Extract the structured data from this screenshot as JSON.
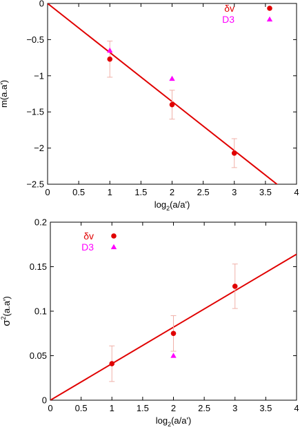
{
  "colors": {
    "fit_line": "#e00000",
    "dv_marker": "#e00000",
    "d3_marker": "#ff00ff",
    "error_bar": "#f0b0a8",
    "axis": "#000000"
  },
  "chart_data": [
    {
      "type": "scatter",
      "title": "",
      "xlabel": {
        "main": "log",
        "sub": "2",
        "rest": "(a/a')"
      },
      "ylabel": {
        "main": "m(a.a')"
      },
      "xlim": [
        0,
        4
      ],
      "ylim": [
        -2.5,
        0
      ],
      "xticks": [
        0,
        0.5,
        1,
        1.5,
        2,
        2.5,
        3,
        3.5,
        4
      ],
      "xtick_labels": [
        "0",
        "0.5",
        "1",
        "1.5",
        "2",
        "2.5",
        "3",
        "3.5",
        "4"
      ],
      "yticks": [
        0,
        -0.5,
        -1,
        -1.5,
        -2,
        -2.5
      ],
      "ytick_labels": [
        "0",
        "−0.5",
        "−1",
        "−1.5",
        "−2",
        "−2.5"
      ],
      "grid": false,
      "legend_position": "top-right",
      "series": [
        {
          "name": "δv",
          "marker": "circle",
          "points": [
            {
              "x": 1,
              "y": -0.77,
              "err": 0.25
            },
            {
              "x": 2,
              "y": -1.4,
              "err": 0.2
            },
            {
              "x": 3,
              "y": -2.07,
              "err": 0.2
            }
          ]
        },
        {
          "name": "D3",
          "marker": "triangle",
          "points": [
            {
              "x": 1,
              "y": -0.65
            },
            {
              "x": 2,
              "y": -1.04
            }
          ]
        }
      ],
      "fit": {
        "type": "line",
        "x": [
          0,
          3.7
        ],
        "y": [
          0,
          -2.51
        ]
      }
    },
    {
      "type": "scatter",
      "title": "",
      "xlabel": {
        "main": "log",
        "sub": "2",
        "rest": "(a/a')"
      },
      "ylabel": {
        "main": "σ",
        "sup": "2",
        "rest": "(a.a')"
      },
      "xlim": [
        0,
        4
      ],
      "ylim": [
        0,
        0.2
      ],
      "xticks": [
        0,
        0.5,
        1,
        1.5,
        2,
        2.5,
        3,
        3.5,
        4
      ],
      "xtick_labels": [
        "0",
        "0.5",
        "1",
        "1.5",
        "2",
        "2.5",
        "3",
        "3.5",
        "4"
      ],
      "yticks": [
        0,
        0.05,
        0.1,
        0.15,
        0.2
      ],
      "ytick_labels": [
        "0",
        "0.05",
        "0.1",
        "0.15",
        "0.2"
      ],
      "grid": false,
      "legend_position": "top-left",
      "series": [
        {
          "name": "δv",
          "marker": "circle",
          "points": [
            {
              "x": 1,
              "y": 0.041,
              "err": 0.02
            },
            {
              "x": 2,
              "y": 0.075,
              "err": 0.02
            },
            {
              "x": 3,
              "y": 0.128,
              "err": 0.025
            }
          ]
        },
        {
          "name": "D3",
          "marker": "triangle",
          "points": [
            {
              "x": 2,
              "y": 0.05
            }
          ]
        }
      ],
      "fit": {
        "type": "line",
        "x": [
          0,
          4
        ],
        "y": [
          0,
          0.164
        ]
      }
    }
  ]
}
